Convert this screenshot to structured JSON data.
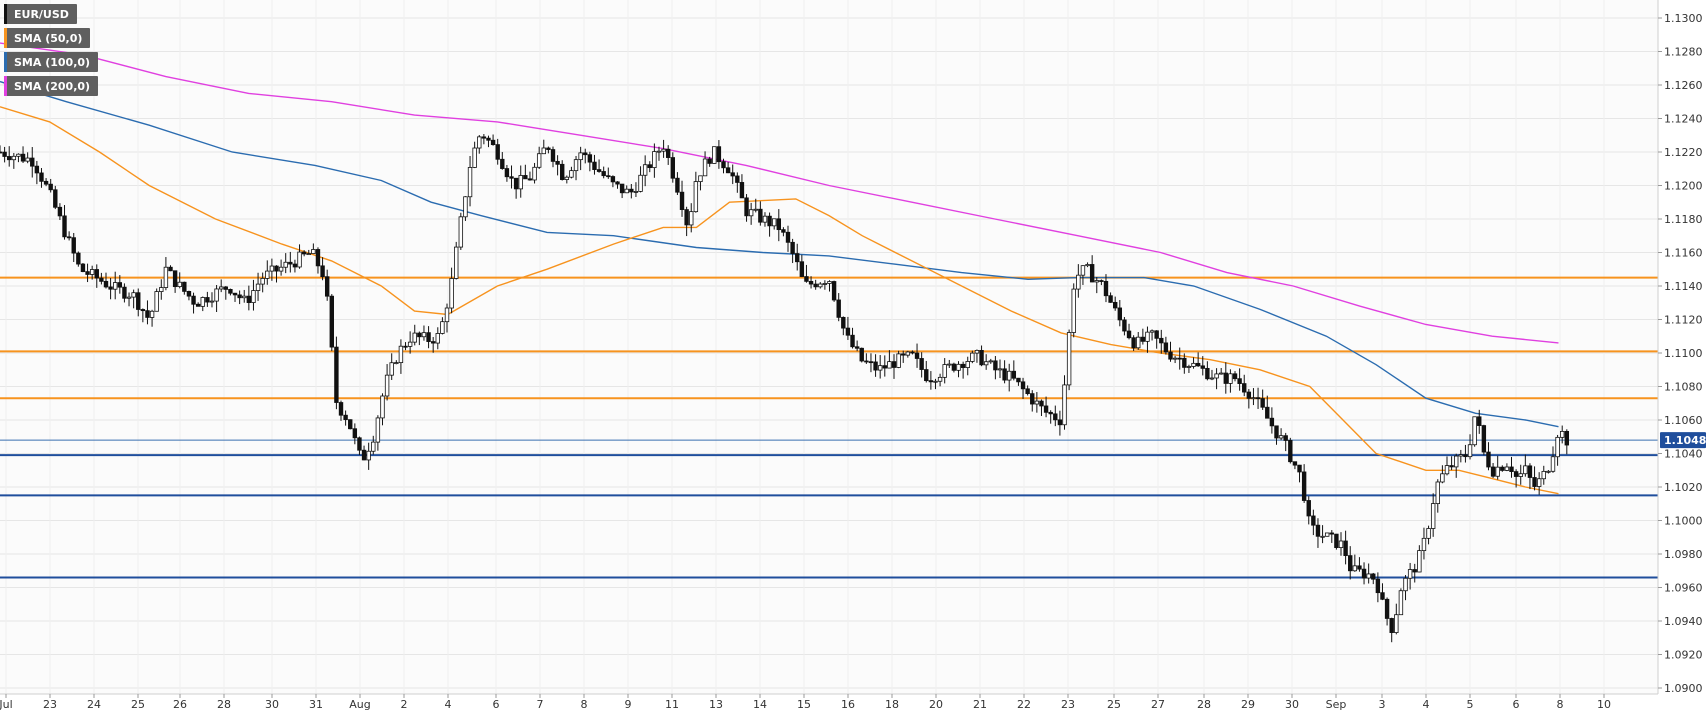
{
  "chart_data": {
    "type": "candlestick",
    "symbol": "EUR/USD",
    "last_price": "1.10483",
    "ylim": [
      1.09,
      1.131
    ],
    "y_ticks": [
      "1.1300",
      "1.1280",
      "1.1260",
      "1.1240",
      "1.1220",
      "1.1200",
      "1.1180",
      "1.1160",
      "1.1140",
      "1.1120",
      "1.1100",
      "1.1080",
      "1.1060",
      "1.1040",
      "1.1020",
      "1.1000",
      "1.0980",
      "1.0960",
      "1.0940",
      "1.0920",
      "1.0900"
    ],
    "x_ticks": [
      "Jul",
      "23",
      "24",
      "25",
      "26",
      "28",
      "30",
      "31",
      "Aug",
      "2",
      "4",
      "6",
      "7",
      "8",
      "9",
      "11",
      "13",
      "14",
      "15",
      "16",
      "18",
      "20",
      "21",
      "22",
      "23",
      "25",
      "27",
      "28",
      "29",
      "30",
      "Sep",
      "3",
      "4",
      "5",
      "6",
      "8",
      "10"
    ],
    "legend": [
      {
        "label": "EUR/USD",
        "color": "#111111"
      },
      {
        "label": "SMA (50,0)",
        "color": "#f7931e"
      },
      {
        "label": "SMA (100,0)",
        "color": "#2b6cb0"
      },
      {
        "label": "SMA (200,0)",
        "color": "#e040e0"
      }
    ],
    "resistance_levels": [
      1.1145,
      1.1101,
      1.1073
    ],
    "support_levels": [
      1.1039,
      1.1015,
      1.0966
    ],
    "current_price_line": 1.1048,
    "colors": {
      "resistance": "#f7931e",
      "support": "#1f4e9c",
      "sma50": "#f7931e",
      "sma100": "#2b6cb0",
      "sma200": "#e040e0",
      "candle_up": "#ffffff",
      "candle_down": "#111111",
      "price_label_bg": "#1f4e9c",
      "grid": "#e6e6e6"
    },
    "sma50": [
      [
        0,
        1.1247
      ],
      [
        0.03,
        1.1238
      ],
      [
        0.06,
        1.122
      ],
      [
        0.09,
        1.12
      ],
      [
        0.13,
        1.118
      ],
      [
        0.17,
        1.1165
      ],
      [
        0.2,
        1.1155
      ],
      [
        0.23,
        1.114
      ],
      [
        0.25,
        1.1125
      ],
      [
        0.27,
        1.1123
      ],
      [
        0.3,
        1.114
      ],
      [
        0.33,
        1.115
      ],
      [
        0.37,
        1.1165
      ],
      [
        0.4,
        1.1175
      ],
      [
        0.42,
        1.1175
      ],
      [
        0.44,
        1.119
      ],
      [
        0.46,
        1.1191
      ],
      [
        0.48,
        1.1192
      ],
      [
        0.5,
        1.1182
      ],
      [
        0.52,
        1.117
      ],
      [
        0.55,
        1.1155
      ],
      [
        0.58,
        1.114
      ],
      [
        0.61,
        1.1125
      ],
      [
        0.64,
        1.1112
      ],
      [
        0.67,
        1.1105
      ],
      [
        0.7,
        1.11
      ],
      [
        0.73,
        1.1096
      ],
      [
        0.76,
        1.109
      ],
      [
        0.79,
        1.108
      ],
      [
        0.81,
        1.106
      ],
      [
        0.83,
        1.104
      ],
      [
        0.86,
        1.103
      ],
      [
        0.88,
        1.103
      ],
      [
        0.9,
        1.1025
      ],
      [
        0.92,
        1.102
      ],
      [
        0.94,
        1.1016
      ]
    ],
    "sma100": [
      [
        0,
        1.1262
      ],
      [
        0.04,
        1.125
      ],
      [
        0.09,
        1.1236
      ],
      [
        0.14,
        1.122
      ],
      [
        0.19,
        1.1212
      ],
      [
        0.23,
        1.1203
      ],
      [
        0.26,
        1.119
      ],
      [
        0.29,
        1.1182
      ],
      [
        0.33,
        1.1172
      ],
      [
        0.37,
        1.117
      ],
      [
        0.42,
        1.1163
      ],
      [
        0.46,
        1.116
      ],
      [
        0.5,
        1.1158
      ],
      [
        0.54,
        1.1153
      ],
      [
        0.58,
        1.1148
      ],
      [
        0.62,
        1.1144
      ],
      [
        0.65,
        1.1145
      ],
      [
        0.69,
        1.1145
      ],
      [
        0.72,
        1.114
      ],
      [
        0.76,
        1.1126
      ],
      [
        0.8,
        1.111
      ],
      [
        0.83,
        1.1093
      ],
      [
        0.86,
        1.1073
      ],
      [
        0.89,
        1.1064
      ],
      [
        0.92,
        1.106
      ],
      [
        0.94,
        1.1056
      ]
    ],
    "sma200": [
      [
        0,
        1.1285
      ],
      [
        0.05,
        1.1278
      ],
      [
        0.1,
        1.1265
      ],
      [
        0.15,
        1.1255
      ],
      [
        0.2,
        1.125
      ],
      [
        0.25,
        1.1242
      ],
      [
        0.3,
        1.1238
      ],
      [
        0.35,
        1.123
      ],
      [
        0.4,
        1.1222
      ],
      [
        0.45,
        1.1212
      ],
      [
        0.5,
        1.12
      ],
      [
        0.55,
        1.119
      ],
      [
        0.6,
        1.118
      ],
      [
        0.65,
        1.117
      ],
      [
        0.7,
        1.116
      ],
      [
        0.74,
        1.1148
      ],
      [
        0.78,
        1.114
      ],
      [
        0.82,
        1.1128
      ],
      [
        0.86,
        1.1117
      ],
      [
        0.9,
        1.111
      ],
      [
        0.94,
        1.1106
      ]
    ],
    "anchors": [
      [
        0,
        1.122
      ],
      [
        0.009,
        1.1218
      ],
      [
        0.02,
        1.1215
      ],
      [
        0.03,
        1.1195
      ],
      [
        0.04,
        1.117
      ],
      [
        0.048,
        1.115
      ],
      [
        0.058,
        1.1145
      ],
      [
        0.07,
        1.1138
      ],
      [
        0.08,
        1.1135
      ],
      [
        0.09,
        1.112
      ],
      [
        0.1,
        1.115
      ],
      [
        0.108,
        1.114
      ],
      [
        0.118,
        1.113
      ],
      [
        0.128,
        1.1135
      ],
      [
        0.138,
        1.114
      ],
      [
        0.148,
        1.113
      ],
      [
        0.158,
        1.1145
      ],
      [
        0.168,
        1.115
      ],
      [
        0.178,
        1.1155
      ],
      [
        0.188,
        1.116
      ],
      [
        0.196,
        1.1145
      ],
      [
        0.203,
        1.107
      ],
      [
        0.21,
        1.106
      ],
      [
        0.218,
        1.1035
      ],
      [
        0.225,
        1.105
      ],
      [
        0.232,
        1.108
      ],
      [
        0.24,
        1.11
      ],
      [
        0.248,
        1.111
      ],
      [
        0.258,
        1.1108
      ],
      [
        0.265,
        1.111
      ],
      [
        0.272,
        1.114
      ],
      [
        0.279,
        1.1185
      ],
      [
        0.284,
        1.1215
      ],
      [
        0.29,
        1.1232
      ],
      [
        0.3,
        1.122
      ],
      [
        0.31,
        1.12
      ],
      [
        0.32,
        1.1205
      ],
      [
        0.33,
        1.1225
      ],
      [
        0.335,
        1.1215
      ],
      [
        0.34,
        1.1205
      ],
      [
        0.35,
        1.122
      ],
      [
        0.36,
        1.121
      ],
      [
        0.37,
        1.12
      ],
      [
        0.38,
        1.1195
      ],
      [
        0.39,
        1.121
      ],
      [
        0.4,
        1.1225
      ],
      [
        0.41,
        1.1195
      ],
      [
        0.415,
        1.1175
      ],
      [
        0.42,
        1.1205
      ],
      [
        0.43,
        1.122
      ],
      [
        0.44,
        1.121
      ],
      [
        0.45,
        1.1185
      ],
      [
        0.46,
        1.118
      ],
      [
        0.47,
        1.1175
      ],
      [
        0.48,
        1.1155
      ],
      [
        0.485,
        1.114
      ],
      [
        0.5,
        1.1145
      ],
      [
        0.51,
        1.111
      ],
      [
        0.52,
        1.1095
      ],
      [
        0.53,
        1.109
      ],
      [
        0.54,
        1.1095
      ],
      [
        0.55,
        1.1098
      ],
      [
        0.56,
        1.1085
      ],
      [
        0.57,
        1.109
      ],
      [
        0.58,
        1.1095
      ],
      [
        0.59,
        1.1098
      ],
      [
        0.6,
        1.109
      ],
      [
        0.61,
        1.1085
      ],
      [
        0.62,
        1.1075
      ],
      [
        0.63,
        1.1065
      ],
      [
        0.64,
        1.106
      ],
      [
        0.648,
        1.1145
      ],
      [
        0.655,
        1.115
      ],
      [
        0.665,
        1.114
      ],
      [
        0.675,
        1.112
      ],
      [
        0.685,
        1.1105
      ],
      [
        0.695,
        1.111
      ],
      [
        0.705,
        1.11
      ],
      [
        0.715,
        1.1095
      ],
      [
        0.725,
        1.109
      ],
      [
        0.735,
        1.1085
      ],
      [
        0.745,
        1.1085
      ],
      [
        0.755,
        1.1075
      ],
      [
        0.765,
        1.106
      ],
      [
        0.775,
        1.1045
      ],
      [
        0.785,
        1.1025
      ],
      [
        0.79,
        1.0995
      ],
      [
        0.8,
        1.099
      ],
      [
        0.81,
        1.0985
      ],
      [
        0.815,
        1.097
      ],
      [
        0.825,
        1.0968
      ],
      [
        0.83,
        1.0965
      ],
      [
        0.835,
        1.0945
      ],
      [
        0.84,
        1.0935
      ],
      [
        0.845,
        1.096
      ],
      [
        0.855,
        1.0975
      ],
      [
        0.86,
        1.099
      ],
      [
        0.866,
        1.102
      ],
      [
        0.872,
        1.103
      ],
      [
        0.878,
        1.1035
      ],
      [
        0.885,
        1.104
      ],
      [
        0.89,
        1.1065
      ],
      [
        0.895,
        1.104
      ],
      [
        0.9,
        1.103
      ],
      [
        0.91,
        1.1035
      ],
      [
        0.915,
        1.1025
      ],
      [
        0.92,
        1.103
      ],
      [
        0.925,
        1.102
      ],
      [
        0.93,
        1.1025
      ],
      [
        0.935,
        1.1035
      ],
      [
        0.94,
        1.1055
      ],
      [
        0.945,
        1.1048
      ]
    ]
  }
}
